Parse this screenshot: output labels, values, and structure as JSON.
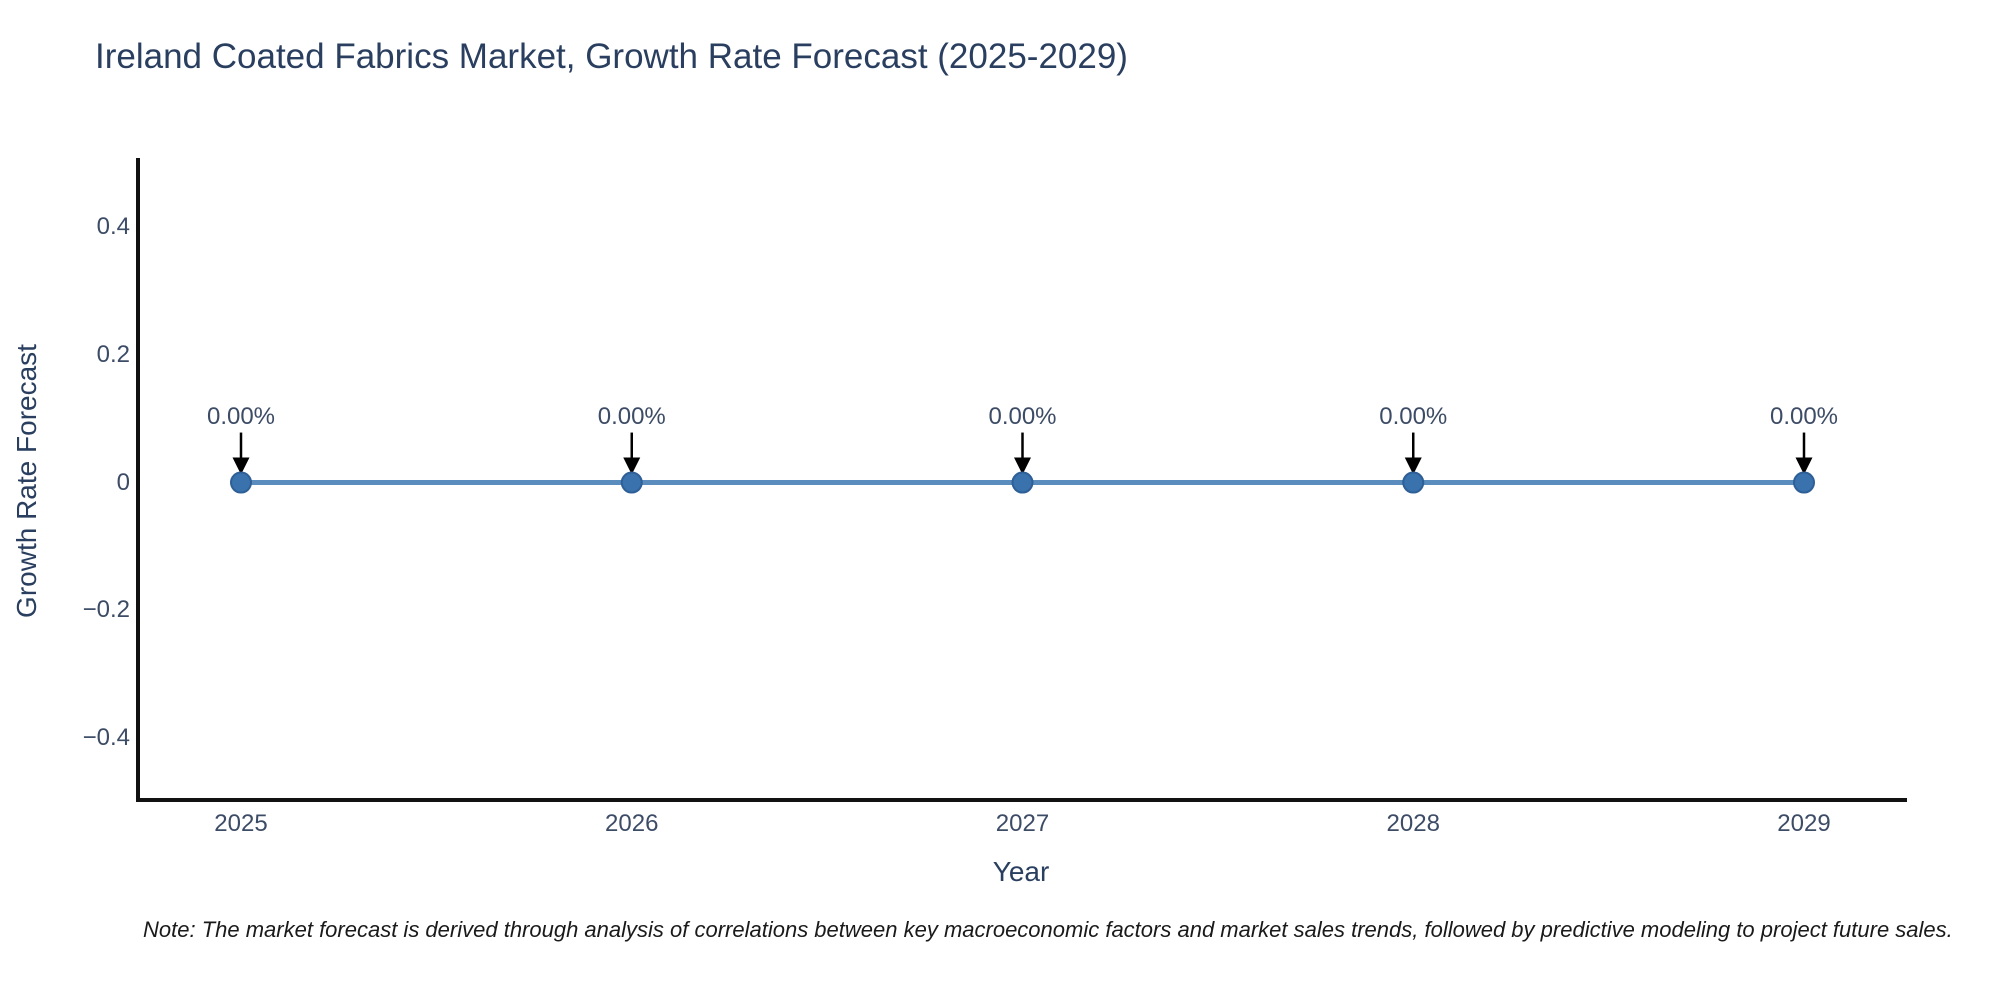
{
  "page": {
    "background": "#ffffff"
  },
  "chart_data": {
    "type": "line",
    "title": "Ireland Coated Fabrics Market, Growth Rate Forecast (2025-2029)",
    "xlabel": "Year",
    "ylabel": "Growth Rate Forecast",
    "categories": [
      "2025",
      "2026",
      "2027",
      "2028",
      "2029"
    ],
    "series": [
      {
        "name": "Growth Rate Forecast",
        "values": [
          0,
          0,
          0,
          0,
          0
        ]
      }
    ],
    "data_labels": [
      "0.00%",
      "0.00%",
      "0.00%",
      "0.00%",
      "0.00%"
    ],
    "ylim": [
      -0.5,
      0.508
    ],
    "yticks": [
      0.4,
      0.2,
      0,
      -0.2,
      -0.4
    ],
    "ytick_labels": [
      "0.4",
      "0.2",
      "0",
      "−0.2",
      "−0.4"
    ],
    "grid": false,
    "legend": "none",
    "annotation_arrows": true,
    "note": "Note: The market forecast is derived through analysis of correlations between key macroeconomic factors and market sales trends, followed by predictive modeling to project future sales."
  },
  "colors": {
    "title": "#2a3f5f",
    "axis_line": "#111111",
    "tick": "#3d4c66",
    "line": "#5a8cbe",
    "marker": "#3a72ad",
    "marker_edge": "#2e5f96",
    "arrow": "#000000",
    "note": "#1a1a1a"
  }
}
